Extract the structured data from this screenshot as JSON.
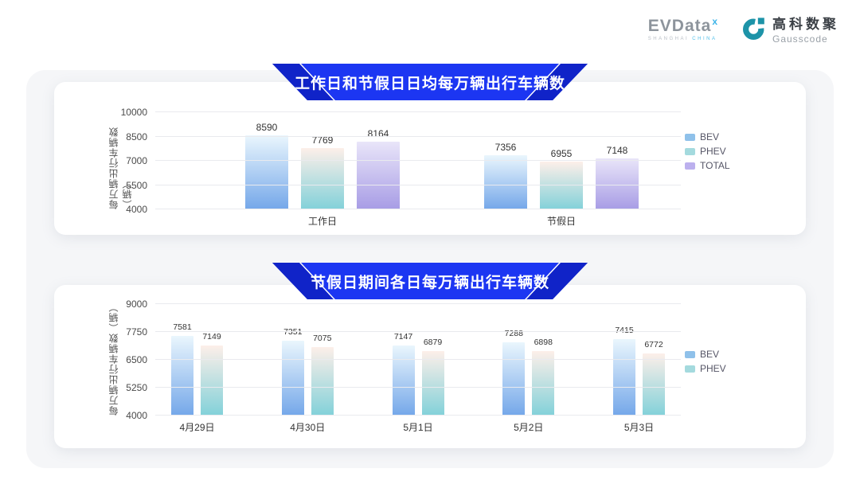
{
  "header": {
    "evdata": {
      "text": "EVData",
      "sup": "x",
      "sub_left": "SHANGHAI",
      "sub_right": "CHINA"
    },
    "gausscode": {
      "cn": "高科数聚",
      "en": "Gausscode"
    }
  },
  "colors": {
    "banner_blue": "#1c36f2",
    "banner_fold": "#1023c8",
    "board_bg": "#f5f6f8",
    "gausscode_teal": "#1d93a8",
    "series": {
      "BEV": {
        "top": "#eaf6fd",
        "bottom": "#74a7e9",
        "swatch": "#8fc1ea"
      },
      "PHEV": {
        "top": "#fdefe9",
        "bottom": "#82d1d9",
        "swatch": "#a4dade"
      },
      "TOTAL": {
        "top": "#e9e5f9",
        "bottom": "#a79ce5",
        "swatch": "#bcb0ee"
      }
    }
  },
  "chart_data": [
    {
      "type": "bar",
      "title": "工作日和节假日日均每万辆出行车辆数",
      "ylabel": "每万辆出行车辆数（辆）",
      "xlabel": "",
      "ylim": [
        4000,
        10000
      ],
      "yticks": [
        4000,
        5500,
        7000,
        8500,
        10000
      ],
      "categories": [
        "工作日",
        "节假日"
      ],
      "series": [
        {
          "name": "BEV",
          "values": [
            8590,
            7356
          ]
        },
        {
          "name": "PHEV",
          "values": [
            7769,
            6955
          ]
        },
        {
          "name": "TOTAL",
          "values": [
            8164,
            7148
          ]
        }
      ],
      "legend": [
        "BEV",
        "PHEV",
        "TOTAL"
      ],
      "legend_position": "right",
      "grid": true
    },
    {
      "type": "bar",
      "title": "节假日期间各日每万辆出行车辆数",
      "ylabel": "每万辆出行车辆数（辆）",
      "xlabel": "",
      "ylim": [
        4000,
        9000
      ],
      "yticks": [
        4000,
        5250,
        6500,
        7750,
        9000
      ],
      "categories": [
        "4月29日",
        "4月30日",
        "5月1日",
        "5月2日",
        "5月3日"
      ],
      "series": [
        {
          "name": "BEV",
          "values": [
            7581,
            7351,
            7147,
            7288,
            7415
          ]
        },
        {
          "name": "PHEV",
          "values": [
            7149,
            7075,
            6879,
            6898,
            6772
          ]
        }
      ],
      "legend": [
        "BEV",
        "PHEV"
      ],
      "legend_position": "right",
      "grid": true
    }
  ]
}
